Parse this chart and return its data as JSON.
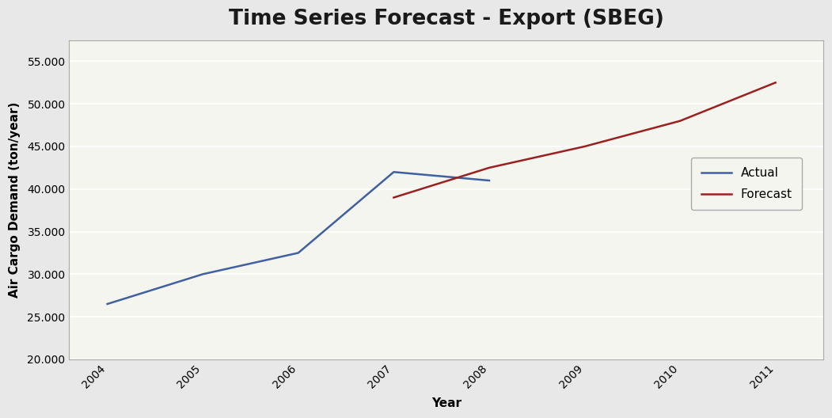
{
  "title": "Time Series Forecast - Export (SBEG)",
  "xlabel": "Year",
  "ylabel": "Air Cargo Demand (ton/year)",
  "actual_x": [
    2004,
    2005,
    2006,
    2007,
    2008
  ],
  "actual_y": [
    26500,
    30000,
    32500,
    42000,
    41000
  ],
  "forecast_x": [
    2007,
    2008,
    2009,
    2010,
    2011
  ],
  "forecast_y": [
    39000,
    42500,
    45000,
    48000,
    52500
  ],
  "actual_color": "#4060A0",
  "forecast_color": "#9B2020",
  "ylim_min": 20000,
  "ylim_max": 57500,
  "yticks": [
    20000,
    25000,
    30000,
    35000,
    40000,
    45000,
    50000,
    55000
  ],
  "xticks": [
    2004,
    2005,
    2006,
    2007,
    2008,
    2009,
    2010,
    2011
  ],
  "fig_bg_color": "#E8E8E8",
  "plot_bg_color": "#F5F5F0",
  "grid_color": "#FFFFFF",
  "title_fontsize": 19,
  "axis_label_fontsize": 11,
  "tick_fontsize": 10,
  "legend_fontsize": 11,
  "line_width": 1.8
}
